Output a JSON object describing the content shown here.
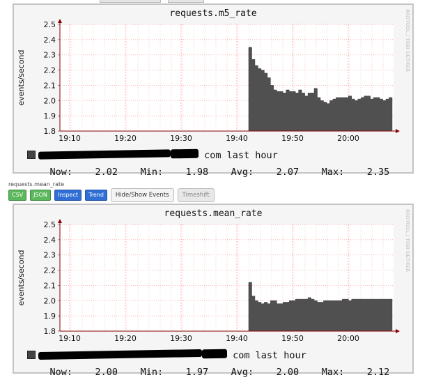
{
  "charts": [
    {
      "chart_data": {
        "type": "area",
        "title": "requests.m5_rate",
        "ylabel": "events/second",
        "ylim": [
          1.8,
          2.5
        ],
        "yticks": [
          "1.8",
          "1.9",
          "2.0",
          "2.1",
          "2.2",
          "2.3",
          "2.4",
          "2.5"
        ],
        "xticks": [
          "19:10",
          "19:20",
          "19:30",
          "19:40",
          "19:50",
          "20:00"
        ],
        "series": [
          {
            "values": [
              2.35,
              2.27,
              2.23,
              2.21,
              2.2,
              2.18,
              2.15,
              2.1,
              2.07,
              2.06,
              2.06,
              2.05,
              2.07,
              2.06,
              2.06,
              2.05,
              2.07,
              2.05,
              2.03,
              2.05,
              2.05,
              2.08,
              2.02,
              2.0,
              1.99,
              1.98,
              2.0,
              2.01,
              2.02,
              2.02,
              2.02,
              2.02,
              2.03,
              2.01,
              2.0,
              2.01,
              2.02,
              2.03,
              2.03,
              2.01,
              2.02,
              2.02,
              2.01,
              2.0,
              2.01,
              2.02
            ]
          }
        ]
      },
      "watermark": "RRDTOOL / TOBI OETIKER",
      "legend_suffix": "com last hour",
      "stats": {
        "now_label": "Now:",
        "now": "2.02",
        "min_label": "Min:",
        "min": "1.98",
        "avg_label": "Avg:",
        "avg": "2.07",
        "max_label": "Max:",
        "max": "2.35"
      }
    },
    {
      "chart_data": {
        "type": "area",
        "title": "requests.mean_rate",
        "ylabel": "events/second",
        "ylim": [
          1.8,
          2.5
        ],
        "yticks": [
          "1.8",
          "1.9",
          "2.0",
          "2.1",
          "2.2",
          "2.3",
          "2.4",
          "2.5"
        ],
        "xticks": [
          "19:10",
          "19:20",
          "19:30",
          "19:40",
          "19:50",
          "20:00"
        ],
        "series": [
          {
            "values": [
              2.12,
              2.03,
              2.0,
              1.99,
              1.98,
              1.99,
              1.98,
              2.0,
              2.0,
              1.98,
              1.98,
              1.99,
              1.99,
              2.0,
              2.0,
              2.01,
              2.01,
              2.01,
              2.01,
              2.02,
              2.01,
              2.0,
              1.99,
              1.99,
              2.0,
              2.0,
              2.0,
              2.0,
              2.0,
              2.0,
              2.01,
              2.01,
              2.0,
              2.01,
              2.01,
              2.01,
              2.01,
              2.01,
              2.01,
              2.01,
              2.01,
              2.01,
              2.01,
              2.01,
              2.01,
              2.01
            ]
          }
        ]
      },
      "watermark": "RRDTOOL / TOBI OETIKER",
      "legend_suffix": "com last hour",
      "stats": {
        "now_label": "Now:",
        "now": "2.00",
        "min_label": "Min:",
        "min": "1.97",
        "avg_label": "Avg:",
        "avg": "2.00",
        "max_label": "Max:",
        "max": "2.12"
      }
    }
  ],
  "toolbar": {
    "target_name": "requests.mean_rate",
    "csv": "CSV",
    "json": "JSON",
    "inspect": "Inspect",
    "trend": "Trend",
    "hide_show": "Hide/Show Events",
    "timeshift": "Timeshift"
  },
  "colors": {
    "area": "#505050",
    "grid": "#ff9999",
    "axis": "#8b0000"
  }
}
